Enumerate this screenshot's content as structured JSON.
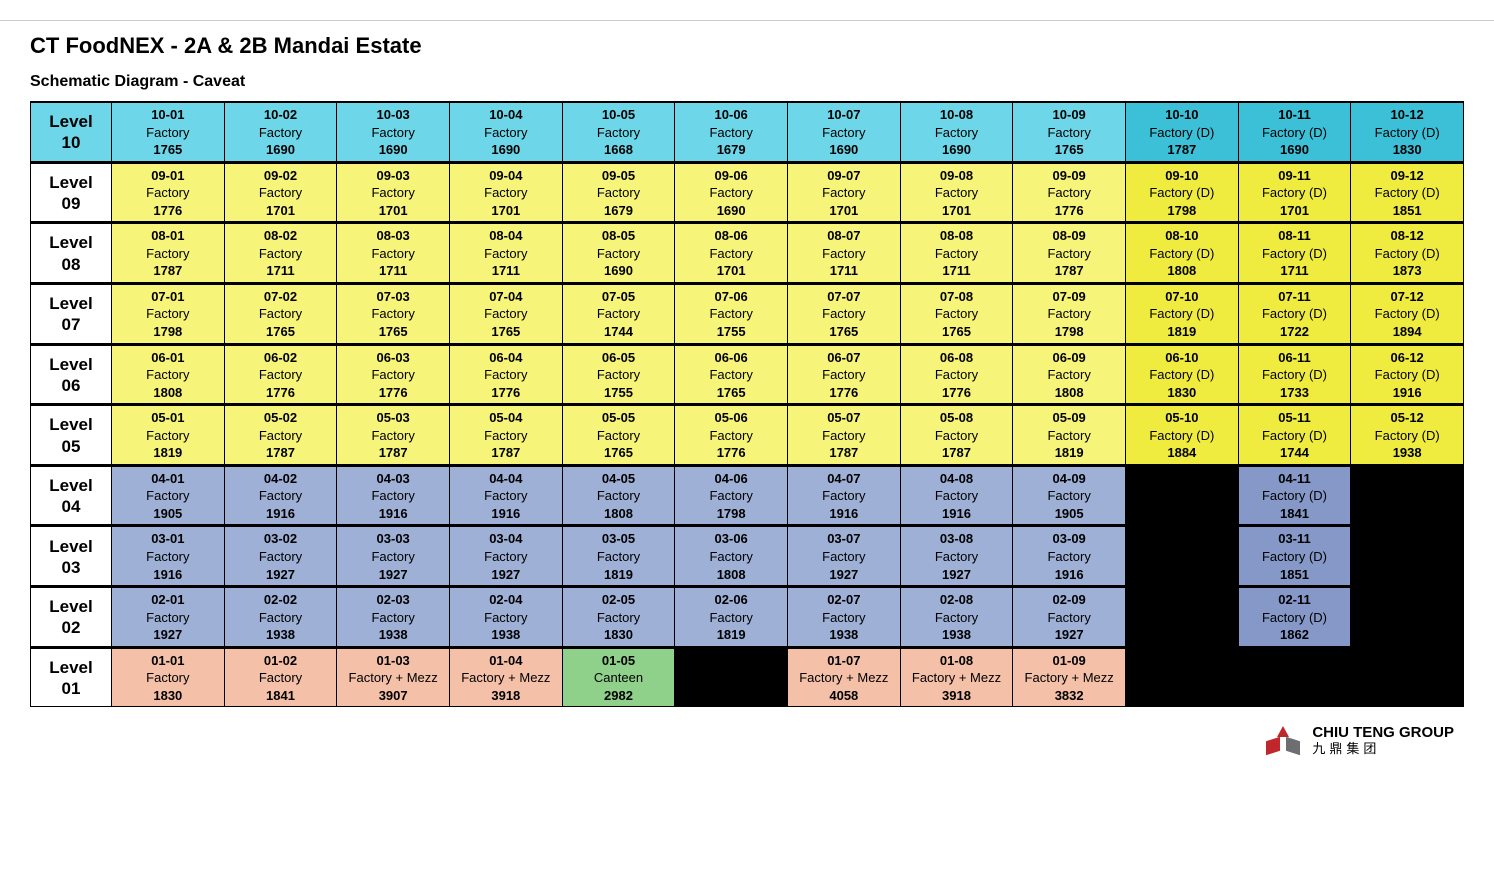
{
  "title": "CT FoodNEX - 2A & 2B Mandai Estate",
  "subtitle": "Schematic Diagram - Caveat",
  "colors": {
    "cyan": "#6dd6e8",
    "cyan_dark": "#3cc0d8",
    "yellow": "#f7f47a",
    "yellow_dark": "#f0ec3f",
    "blue": "#9fb0d6",
    "blue_dark": "#8598c8",
    "peach": "#f4c0a8",
    "green": "#8fd08a",
    "white": "#ffffff",
    "black": "#000000"
  },
  "footer": {
    "brand_en": "CHIU TENG GROUP",
    "brand_cn": "九鼎集团"
  },
  "level_word": "Level",
  "levels": [
    {
      "num": "10",
      "level_bg": "cyan",
      "units": [
        {
          "id": "10-01",
          "type": "Factory",
          "val": "1765",
          "bg": "cyan"
        },
        {
          "id": "10-02",
          "type": "Factory",
          "val": "1690",
          "bg": "cyan"
        },
        {
          "id": "10-03",
          "type": "Factory",
          "val": "1690",
          "bg": "cyan"
        },
        {
          "id": "10-04",
          "type": "Factory",
          "val": "1690",
          "bg": "cyan"
        },
        {
          "id": "10-05",
          "type": "Factory",
          "val": "1668",
          "bg": "cyan"
        },
        {
          "id": "10-06",
          "type": "Factory",
          "val": "1679",
          "bg": "cyan"
        },
        {
          "id": "10-07",
          "type": "Factory",
          "val": "1690",
          "bg": "cyan"
        },
        {
          "id": "10-08",
          "type": "Factory",
          "val": "1690",
          "bg": "cyan"
        },
        {
          "id": "10-09",
          "type": "Factory",
          "val": "1765",
          "bg": "cyan"
        },
        {
          "id": "10-10",
          "type": "Factory (D)",
          "val": "1787",
          "bg": "cyan_dark"
        },
        {
          "id": "10-11",
          "type": "Factory (D)",
          "val": "1690",
          "bg": "cyan_dark"
        },
        {
          "id": "10-12",
          "type": "Factory (D)",
          "val": "1830",
          "bg": "cyan_dark"
        }
      ]
    },
    {
      "num": "09",
      "level_bg": "white",
      "units": [
        {
          "id": "09-01",
          "type": "Factory",
          "val": "1776",
          "bg": "yellow"
        },
        {
          "id": "09-02",
          "type": "Factory",
          "val": "1701",
          "bg": "yellow"
        },
        {
          "id": "09-03",
          "type": "Factory",
          "val": "1701",
          "bg": "yellow"
        },
        {
          "id": "09-04",
          "type": "Factory",
          "val": "1701",
          "bg": "yellow"
        },
        {
          "id": "09-05",
          "type": "Factory",
          "val": "1679",
          "bg": "yellow"
        },
        {
          "id": "09-06",
          "type": "Factory",
          "val": "1690",
          "bg": "yellow"
        },
        {
          "id": "09-07",
          "type": "Factory",
          "val": "1701",
          "bg": "yellow"
        },
        {
          "id": "09-08",
          "type": "Factory",
          "val": "1701",
          "bg": "yellow"
        },
        {
          "id": "09-09",
          "type": "Factory",
          "val": "1776",
          "bg": "yellow"
        },
        {
          "id": "09-10",
          "type": "Factory (D)",
          "val": "1798",
          "bg": "yellow_dark"
        },
        {
          "id": "09-11",
          "type": "Factory (D)",
          "val": "1701",
          "bg": "yellow_dark"
        },
        {
          "id": "09-12",
          "type": "Factory (D)",
          "val": "1851",
          "bg": "yellow_dark"
        }
      ]
    },
    {
      "num": "08",
      "level_bg": "white",
      "units": [
        {
          "id": "08-01",
          "type": "Factory",
          "val": "1787",
          "bg": "yellow"
        },
        {
          "id": "08-02",
          "type": "Factory",
          "val": "1711",
          "bg": "yellow"
        },
        {
          "id": "08-03",
          "type": "Factory",
          "val": "1711",
          "bg": "yellow"
        },
        {
          "id": "08-04",
          "type": "Factory",
          "val": "1711",
          "bg": "yellow"
        },
        {
          "id": "08-05",
          "type": "Factory",
          "val": "1690",
          "bg": "yellow"
        },
        {
          "id": "08-06",
          "type": "Factory",
          "val": "1701",
          "bg": "yellow"
        },
        {
          "id": "08-07",
          "type": "Factory",
          "val": "1711",
          "bg": "yellow"
        },
        {
          "id": "08-08",
          "type": "Factory",
          "val": "1711",
          "bg": "yellow"
        },
        {
          "id": "08-09",
          "type": "Factory",
          "val": "1787",
          "bg": "yellow"
        },
        {
          "id": "08-10",
          "type": "Factory (D)",
          "val": "1808",
          "bg": "yellow_dark"
        },
        {
          "id": "08-11",
          "type": "Factory (D)",
          "val": "1711",
          "bg": "yellow_dark"
        },
        {
          "id": "08-12",
          "type": "Factory (D)",
          "val": "1873",
          "bg": "yellow_dark"
        }
      ]
    },
    {
      "num": "07",
      "level_bg": "white",
      "units": [
        {
          "id": "07-01",
          "type": "Factory",
          "val": "1798",
          "bg": "yellow"
        },
        {
          "id": "07-02",
          "type": "Factory",
          "val": "1765",
          "bg": "yellow"
        },
        {
          "id": "07-03",
          "type": "Factory",
          "val": "1765",
          "bg": "yellow"
        },
        {
          "id": "07-04",
          "type": "Factory",
          "val": "1765",
          "bg": "yellow"
        },
        {
          "id": "07-05",
          "type": "Factory",
          "val": "1744",
          "bg": "yellow"
        },
        {
          "id": "07-06",
          "type": "Factory",
          "val": "1755",
          "bg": "yellow"
        },
        {
          "id": "07-07",
          "type": "Factory",
          "val": "1765",
          "bg": "yellow"
        },
        {
          "id": "07-08",
          "type": "Factory",
          "val": "1765",
          "bg": "yellow"
        },
        {
          "id": "07-09",
          "type": "Factory",
          "val": "1798",
          "bg": "yellow"
        },
        {
          "id": "07-10",
          "type": "Factory (D)",
          "val": "1819",
          "bg": "yellow_dark"
        },
        {
          "id": "07-11",
          "type": "Factory (D)",
          "val": "1722",
          "bg": "yellow_dark"
        },
        {
          "id": "07-12",
          "type": "Factory (D)",
          "val": "1894",
          "bg": "yellow_dark"
        }
      ]
    },
    {
      "num": "06",
      "level_bg": "white",
      "units": [
        {
          "id": "06-01",
          "type": "Factory",
          "val": "1808",
          "bg": "yellow"
        },
        {
          "id": "06-02",
          "type": "Factory",
          "val": "1776",
          "bg": "yellow"
        },
        {
          "id": "06-03",
          "type": "Factory",
          "val": "1776",
          "bg": "yellow"
        },
        {
          "id": "06-04",
          "type": "Factory",
          "val": "1776",
          "bg": "yellow"
        },
        {
          "id": "06-05",
          "type": "Factory",
          "val": "1755",
          "bg": "yellow"
        },
        {
          "id": "06-06",
          "type": "Factory",
          "val": "1765",
          "bg": "yellow"
        },
        {
          "id": "06-07",
          "type": "Factory",
          "val": "1776",
          "bg": "yellow"
        },
        {
          "id": "06-08",
          "type": "Factory",
          "val": "1776",
          "bg": "yellow"
        },
        {
          "id": "06-09",
          "type": "Factory",
          "val": "1808",
          "bg": "yellow"
        },
        {
          "id": "06-10",
          "type": "Factory (D)",
          "val": "1830",
          "bg": "yellow_dark"
        },
        {
          "id": "06-11",
          "type": "Factory (D)",
          "val": "1733",
          "bg": "yellow_dark"
        },
        {
          "id": "06-12",
          "type": "Factory (D)",
          "val": "1916",
          "bg": "yellow_dark"
        }
      ]
    },
    {
      "num": "05",
      "level_bg": "white",
      "units": [
        {
          "id": "05-01",
          "type": "Factory",
          "val": "1819",
          "bg": "yellow"
        },
        {
          "id": "05-02",
          "type": "Factory",
          "val": "1787",
          "bg": "yellow"
        },
        {
          "id": "05-03",
          "type": "Factory",
          "val": "1787",
          "bg": "yellow"
        },
        {
          "id": "05-04",
          "type": "Factory",
          "val": "1787",
          "bg": "yellow"
        },
        {
          "id": "05-05",
          "type": "Factory",
          "val": "1765",
          "bg": "yellow"
        },
        {
          "id": "05-06",
          "type": "Factory",
          "val": "1776",
          "bg": "yellow"
        },
        {
          "id": "05-07",
          "type": "Factory",
          "val": "1787",
          "bg": "yellow"
        },
        {
          "id": "05-08",
          "type": "Factory",
          "val": "1787",
          "bg": "yellow"
        },
        {
          "id": "05-09",
          "type": "Factory",
          "val": "1819",
          "bg": "yellow"
        },
        {
          "id": "05-10",
          "type": "Factory (D)",
          "val": "1884",
          "bg": "yellow_dark"
        },
        {
          "id": "05-11",
          "type": "Factory (D)",
          "val": "1744",
          "bg": "yellow_dark"
        },
        {
          "id": "05-12",
          "type": "Factory (D)",
          "val": "1938",
          "bg": "yellow_dark"
        }
      ]
    },
    {
      "num": "04",
      "level_bg": "white",
      "units": [
        {
          "id": "04-01",
          "type": "Factory",
          "val": "1905",
          "bg": "blue"
        },
        {
          "id": "04-02",
          "type": "Factory",
          "val": "1916",
          "bg": "blue"
        },
        {
          "id": "04-03",
          "type": "Factory",
          "val": "1916",
          "bg": "blue"
        },
        {
          "id": "04-04",
          "type": "Factory",
          "val": "1916",
          "bg": "blue"
        },
        {
          "id": "04-05",
          "type": "Factory",
          "val": "1808",
          "bg": "blue"
        },
        {
          "id": "04-06",
          "type": "Factory",
          "val": "1798",
          "bg": "blue"
        },
        {
          "id": "04-07",
          "type": "Factory",
          "val": "1916",
          "bg": "blue"
        },
        {
          "id": "04-08",
          "type": "Factory",
          "val": "1916",
          "bg": "blue"
        },
        {
          "id": "04-09",
          "type": "Factory",
          "val": "1905",
          "bg": "blue"
        },
        {
          "black": true
        },
        {
          "id": "04-11",
          "type": "Factory (D)",
          "val": "1841",
          "bg": "blue_dark"
        },
        {
          "black": true
        }
      ]
    },
    {
      "num": "03",
      "level_bg": "white",
      "units": [
        {
          "id": "03-01",
          "type": "Factory",
          "val": "1916",
          "bg": "blue"
        },
        {
          "id": "03-02",
          "type": "Factory",
          "val": "1927",
          "bg": "blue"
        },
        {
          "id": "03-03",
          "type": "Factory",
          "val": "1927",
          "bg": "blue"
        },
        {
          "id": "03-04",
          "type": "Factory",
          "val": "1927",
          "bg": "blue"
        },
        {
          "id": "03-05",
          "type": "Factory",
          "val": "1819",
          "bg": "blue"
        },
        {
          "id": "03-06",
          "type": "Factory",
          "val": "1808",
          "bg": "blue"
        },
        {
          "id": "03-07",
          "type": "Factory",
          "val": "1927",
          "bg": "blue"
        },
        {
          "id": "03-08",
          "type": "Factory",
          "val": "1927",
          "bg": "blue"
        },
        {
          "id": "03-09",
          "type": "Factory",
          "val": "1916",
          "bg": "blue"
        },
        {
          "black": true
        },
        {
          "id": "03-11",
          "type": "Factory (D)",
          "val": "1851",
          "bg": "blue_dark"
        },
        {
          "black": true
        }
      ]
    },
    {
      "num": "02",
      "level_bg": "white",
      "units": [
        {
          "id": "02-01",
          "type": "Factory",
          "val": "1927",
          "bg": "blue"
        },
        {
          "id": "02-02",
          "type": "Factory",
          "val": "1938",
          "bg": "blue"
        },
        {
          "id": "02-03",
          "type": "Factory",
          "val": "1938",
          "bg": "blue"
        },
        {
          "id": "02-04",
          "type": "Factory",
          "val": "1938",
          "bg": "blue"
        },
        {
          "id": "02-05",
          "type": "Factory",
          "val": "1830",
          "bg": "blue"
        },
        {
          "id": "02-06",
          "type": "Factory",
          "val": "1819",
          "bg": "blue"
        },
        {
          "id": "02-07",
          "type": "Factory",
          "val": "1938",
          "bg": "blue"
        },
        {
          "id": "02-08",
          "type": "Factory",
          "val": "1938",
          "bg": "blue"
        },
        {
          "id": "02-09",
          "type": "Factory",
          "val": "1927",
          "bg": "blue"
        },
        {
          "black": true
        },
        {
          "id": "02-11",
          "type": "Factory (D)",
          "val": "1862",
          "bg": "blue_dark"
        },
        {
          "black": true
        }
      ]
    },
    {
      "num": "01",
      "level_bg": "white",
      "units": [
        {
          "id": "01-01",
          "type": "Factory",
          "val": "1830",
          "bg": "peach"
        },
        {
          "id": "01-02",
          "type": "Factory",
          "val": "1841",
          "bg": "peach"
        },
        {
          "id": "01-03",
          "type": "Factory + Mezz",
          "val": "3907",
          "bg": "peach"
        },
        {
          "id": "01-04",
          "type": "Factory + Mezz",
          "val": "3918",
          "bg": "peach"
        },
        {
          "id": "01-05",
          "type": "Canteen",
          "val": "2982",
          "bg": "green"
        },
        {
          "black": true
        },
        {
          "id": "01-07",
          "type": "Factory + Mezz",
          "val": "4058",
          "bg": "peach"
        },
        {
          "id": "01-08",
          "type": "Factory + Mezz",
          "val": "3918",
          "bg": "peach"
        },
        {
          "id": "01-09",
          "type": "Factory + Mezz",
          "val": "3832",
          "bg": "peach"
        },
        {
          "black": true
        },
        {
          "black": true
        },
        {
          "black": true
        }
      ]
    }
  ]
}
